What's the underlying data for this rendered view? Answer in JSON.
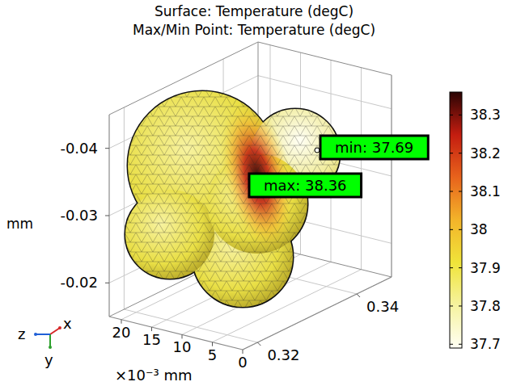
{
  "chart_data": {
    "type": "surface",
    "title": "Surface: Temperature (degC)",
    "subtitle": "Max/Min Point: Temperature (degC)",
    "y_label": "mm",
    "z_label": "×10⁻³ mm",
    "xlim": [
      0.317,
      0.347
    ],
    "xticks": [
      0.32,
      0.34
    ],
    "ylim": [
      -0.045,
      -0.015
    ],
    "yticks": [
      -0.04,
      -0.03,
      -0.02
    ],
    "zlim": [
      0,
      22
    ],
    "zticks": [
      20,
      15,
      10,
      5,
      0
    ],
    "grid": true,
    "colorbar": {
      "range": [
        37.69,
        38.36
      ],
      "ticks": [
        37.7,
        37.8,
        37.9,
        38,
        38.1,
        38.2,
        38.3
      ]
    },
    "annotations": [
      {
        "text": "min: 37.69",
        "value": 37.69
      },
      {
        "text": "max: 38.36",
        "value": 38.36
      }
    ],
    "axes_triad": [
      "x",
      "y",
      "z"
    ]
  }
}
